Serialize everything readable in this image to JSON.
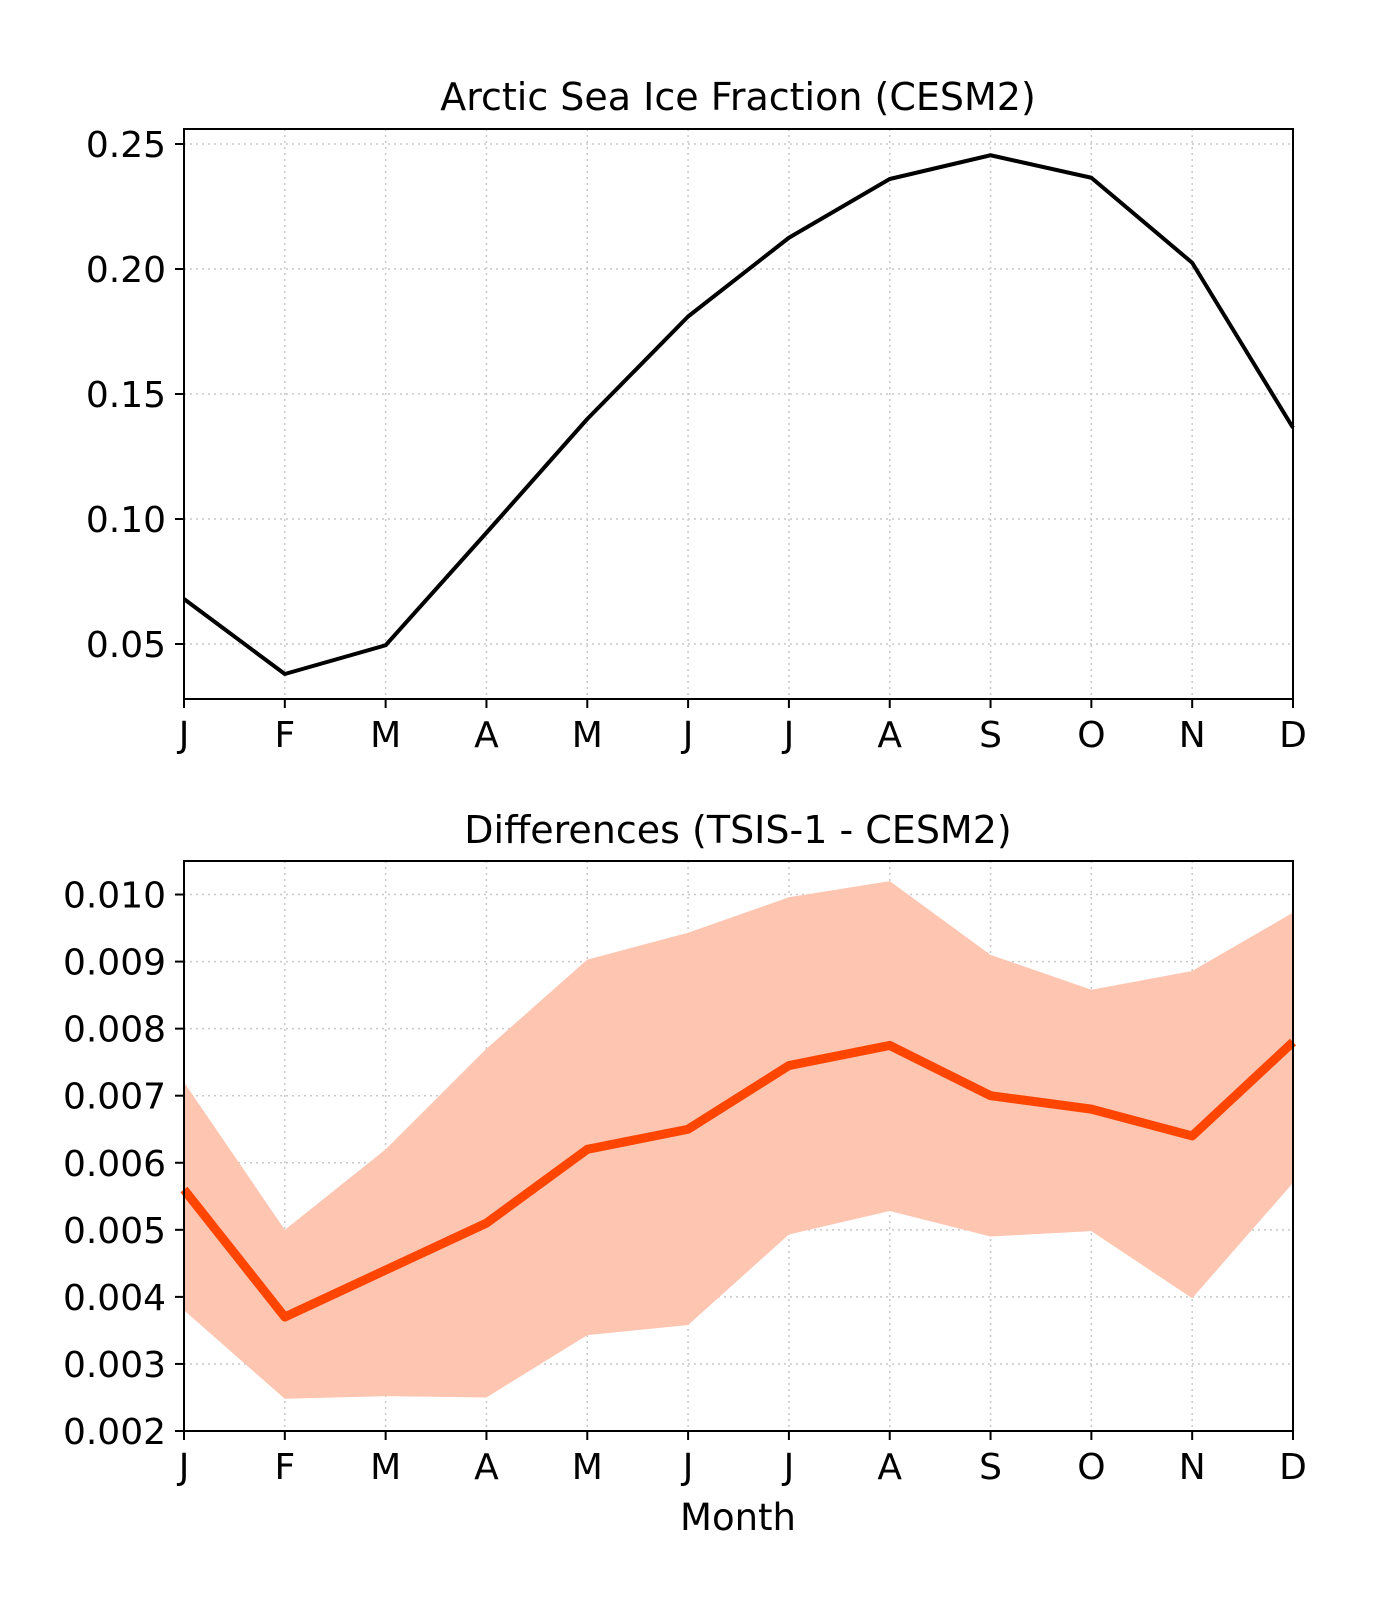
{
  "chart_data": [
    {
      "type": "line",
      "title": "Arctic Sea Ice Fraction (CESM2)",
      "xlabel": "",
      "ylabel": "",
      "categories": [
        "J",
        "F",
        "M",
        "A",
        "M",
        "J",
        "J",
        "A",
        "S",
        "O",
        "N",
        "D"
      ],
      "ylim": [
        0.028,
        0.256
      ],
      "yticks": [
        0.05,
        0.1,
        0.15,
        0.2,
        0.25
      ],
      "ytick_labels": [
        "0.05",
        "0.10",
        "0.15",
        "0.20",
        "0.25"
      ],
      "grid": true,
      "series": [
        {
          "values": [
            0.068,
            0.038,
            0.0495,
            0.0945,
            0.14,
            0.181,
            0.2125,
            0.236,
            0.2455,
            0.2365,
            0.2025,
            0.1365
          ],
          "color": "#000000"
        }
      ]
    },
    {
      "type": "area",
      "title": "Differences (TSIS-1 - CESM2)",
      "xlabel": "Month",
      "ylabel": "",
      "categories": [
        "J",
        "F",
        "M",
        "A",
        "M",
        "J",
        "J",
        "A",
        "S",
        "O",
        "N",
        "D"
      ],
      "ylim": [
        0.002,
        0.0105
      ],
      "yticks": [
        0.002,
        0.003,
        0.004,
        0.005,
        0.006,
        0.007,
        0.008,
        0.009,
        0.01
      ],
      "ytick_labels": [
        "0.002",
        "0.003",
        "0.004",
        "0.005",
        "0.006",
        "0.007",
        "0.008",
        "0.009",
        "0.010"
      ],
      "grid": true,
      "series": [
        {
          "values": [
            0.0056,
            0.0037,
            0.0044,
            0.0051,
            0.0062,
            0.0065,
            0.00745,
            0.00775,
            0.007,
            0.0068,
            0.0064,
            0.0078
          ],
          "lower": [
            0.0038,
            0.00248,
            0.00252,
            0.0025,
            0.00343,
            0.00358,
            0.00493,
            0.00528,
            0.0049,
            0.00498,
            0.00398,
            0.0057
          ],
          "upper": [
            0.0072,
            0.005,
            0.0062,
            0.0077,
            0.00903,
            0.00943,
            0.00996,
            0.0102,
            0.0091,
            0.00858,
            0.00886,
            0.00973
          ],
          "color": "#ff4500",
          "band_color": "#fec5b1"
        }
      ]
    }
  ]
}
